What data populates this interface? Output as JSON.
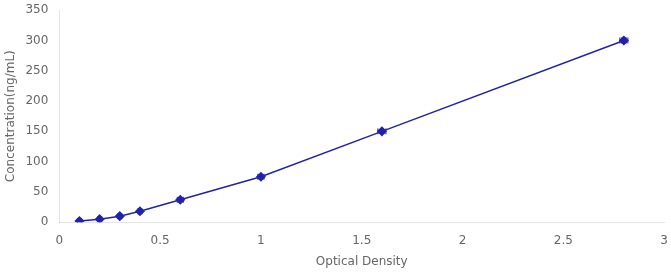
{
  "chart_data": {
    "type": "line",
    "x": [
      0.1,
      0.2,
      0.3,
      0.4,
      0.6,
      1.0,
      1.6,
      2.8
    ],
    "values": [
      2,
      5,
      10,
      18,
      37,
      75,
      150,
      300
    ],
    "xerr": [
      0.01,
      0.01,
      0.01,
      0.01,
      0.015,
      0.015,
      0.02,
      0.02
    ],
    "yerr": [
      1,
      1,
      1,
      1.5,
      2,
      2.5,
      3,
      4
    ],
    "color": "#2222aa",
    "marker": "diamond",
    "line_style": "solid",
    "xlabel": "Optical Density",
    "ylabel": "Concentration(ng/mL)",
    "xlim": [
      0,
      3
    ],
    "ylim": [
      0,
      350
    ],
    "xticks": [
      0,
      0.5,
      1,
      1.5,
      2,
      2.5,
      3
    ],
    "yticks": [
      0,
      50,
      100,
      150,
      200,
      250,
      300,
      350
    ],
    "grid": false
  }
}
